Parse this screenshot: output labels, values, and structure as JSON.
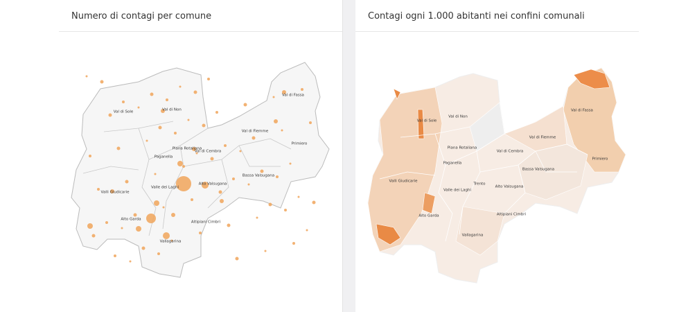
{
  "panels": [
    {
      "title": "Numero di contagi per comune",
      "labels": [
        "Val di Sole",
        "Val di Non",
        "Val di Fassa",
        "Val di Fiemme",
        "Primiero",
        "Piana Rotaliana",
        "Val di Cembra",
        "Paganella",
        "Valle dei Laghi",
        "Alto Valsugana",
        "Bassa Valsugana",
        "Valli Giudicarie",
        "Alto Garda",
        "Altipiani Cimbri",
        "Vallagarina"
      ]
    },
    {
      "title": "Contagi ogni 1.000 abitanti nei confini comunali",
      "labels": [
        "Val di Sole",
        "Val di Non",
        "Val di Fassa",
        "Val di Fiemme",
        "Primiero",
        "Piana Rotaliana",
        "Val di Cembra",
        "Paganella",
        "Valle dei Laghi",
        "Alto Valsugana",
        "Bassa Valsugana",
        "Valli Giudicarie",
        "Alto Garda",
        "Altipiani Cimbri",
        "Vallagarina",
        "Trento"
      ]
    }
  ]
}
